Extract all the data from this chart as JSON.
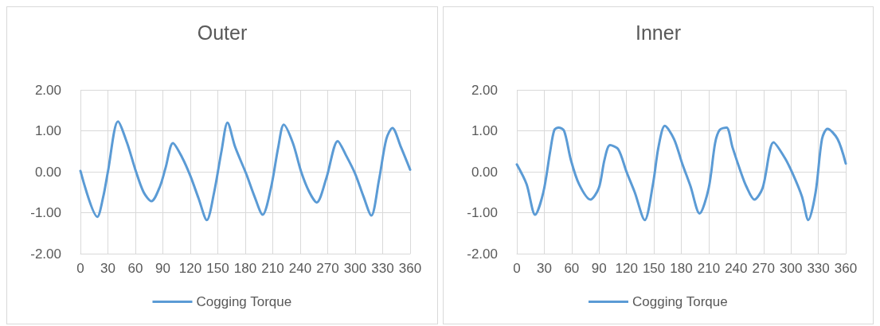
{
  "chart_data": [
    {
      "type": "line",
      "title": "Outer",
      "xlim": [
        0,
        360
      ],
      "xticks": [
        0,
        30,
        60,
        90,
        120,
        150,
        180,
        210,
        240,
        270,
        300,
        330,
        360
      ],
      "ylim": [
        -2,
        2
      ],
      "yticks": [
        {
          "value": -2,
          "label": "-2.00"
        },
        {
          "value": -1,
          "label": "-1.00"
        },
        {
          "value": 0,
          "label": "0.00"
        },
        {
          "value": 1,
          "label": "1.00"
        },
        {
          "value": 2,
          "label": "2.00"
        }
      ],
      "grid": true,
      "legend": "bottom",
      "marker": "none",
      "line_style": "solid",
      "series": [
        {
          "name": "Cogging Torque",
          "color": "#5b9bd5",
          "x": [
            0,
            18.5,
            25,
            30,
            41,
            51,
            60,
            69,
            77.5,
            87,
            93,
            101,
            111,
            120,
            129,
            138,
            146,
            154,
            160.6,
            169,
            181,
            190,
            199,
            208,
            216,
            222,
            232,
            241,
            250,
            258,
            268.6,
            281,
            290,
            300,
            309,
            317.6,
            326,
            334,
            340.6,
            350,
            360
          ],
          "values": [
            0.02,
            -1.1,
            -0.6,
            0,
            1.23,
            0.7,
            0.05,
            -0.5,
            -0.72,
            -0.35,
            0.1,
            0.7,
            0.35,
            -0.1,
            -0.65,
            -1.18,
            -0.5,
            0.5,
            1.2,
            0.6,
            -0.05,
            -0.6,
            -1.05,
            -0.4,
            0.6,
            1.15,
            0.7,
            0,
            -0.5,
            -0.75,
            -0.15,
            0.75,
            0.4,
            -0.05,
            -0.6,
            -1.07,
            -0.2,
            0.8,
            1.07,
            0.6,
            0.05
          ]
        }
      ]
    },
    {
      "type": "line",
      "title": "Inner",
      "xlim": [
        0,
        360
      ],
      "xticks": [
        0,
        30,
        60,
        90,
        120,
        150,
        180,
        210,
        240,
        270,
        300,
        330,
        360
      ],
      "ylim": [
        -2,
        2
      ],
      "yticks": [
        {
          "value": -2,
          "label": "-2.00"
        },
        {
          "value": -1,
          "label": "-1.00"
        },
        {
          "value": 0,
          "label": "0.00"
        },
        {
          "value": 1,
          "label": "1.00"
        },
        {
          "value": 2,
          "label": "2.00"
        }
      ],
      "grid": true,
      "legend": "bottom",
      "marker": "none",
      "line_style": "solid",
      "series": [
        {
          "name": "Cogging Torque",
          "color": "#5b9bd5",
          "x": [
            0,
            10.6,
            20,
            29,
            36.5,
            41,
            45.6,
            51.7,
            59,
            68,
            80.5,
            89.7,
            96,
            102,
            111,
            120,
            129,
            140,
            149,
            155,
            162,
            172,
            181,
            190,
            200,
            210,
            217,
            222,
            229.5,
            236,
            245,
            251,
            260,
            269,
            281,
            293,
            302,
            312,
            319,
            327,
            334,
            340,
            351,
            360
          ],
          "values": [
            0.18,
            -0.3,
            -1.05,
            -0.5,
            0.5,
            1.02,
            1.08,
            1.0,
            0.3,
            -0.3,
            -0.68,
            -0.4,
            0.3,
            0.65,
            0.55,
            0,
            -0.5,
            -1.18,
            -0.3,
            0.6,
            1.12,
            0.8,
            0.2,
            -0.35,
            -1.02,
            -0.4,
            0.7,
            1.02,
            1.08,
            0.6,
            0,
            -0.35,
            -0.68,
            -0.4,
            0.72,
            0.35,
            -0.05,
            -0.6,
            -1.18,
            -0.5,
            0.8,
            1.05,
            0.8,
            0.2
          ]
        }
      ]
    }
  ]
}
